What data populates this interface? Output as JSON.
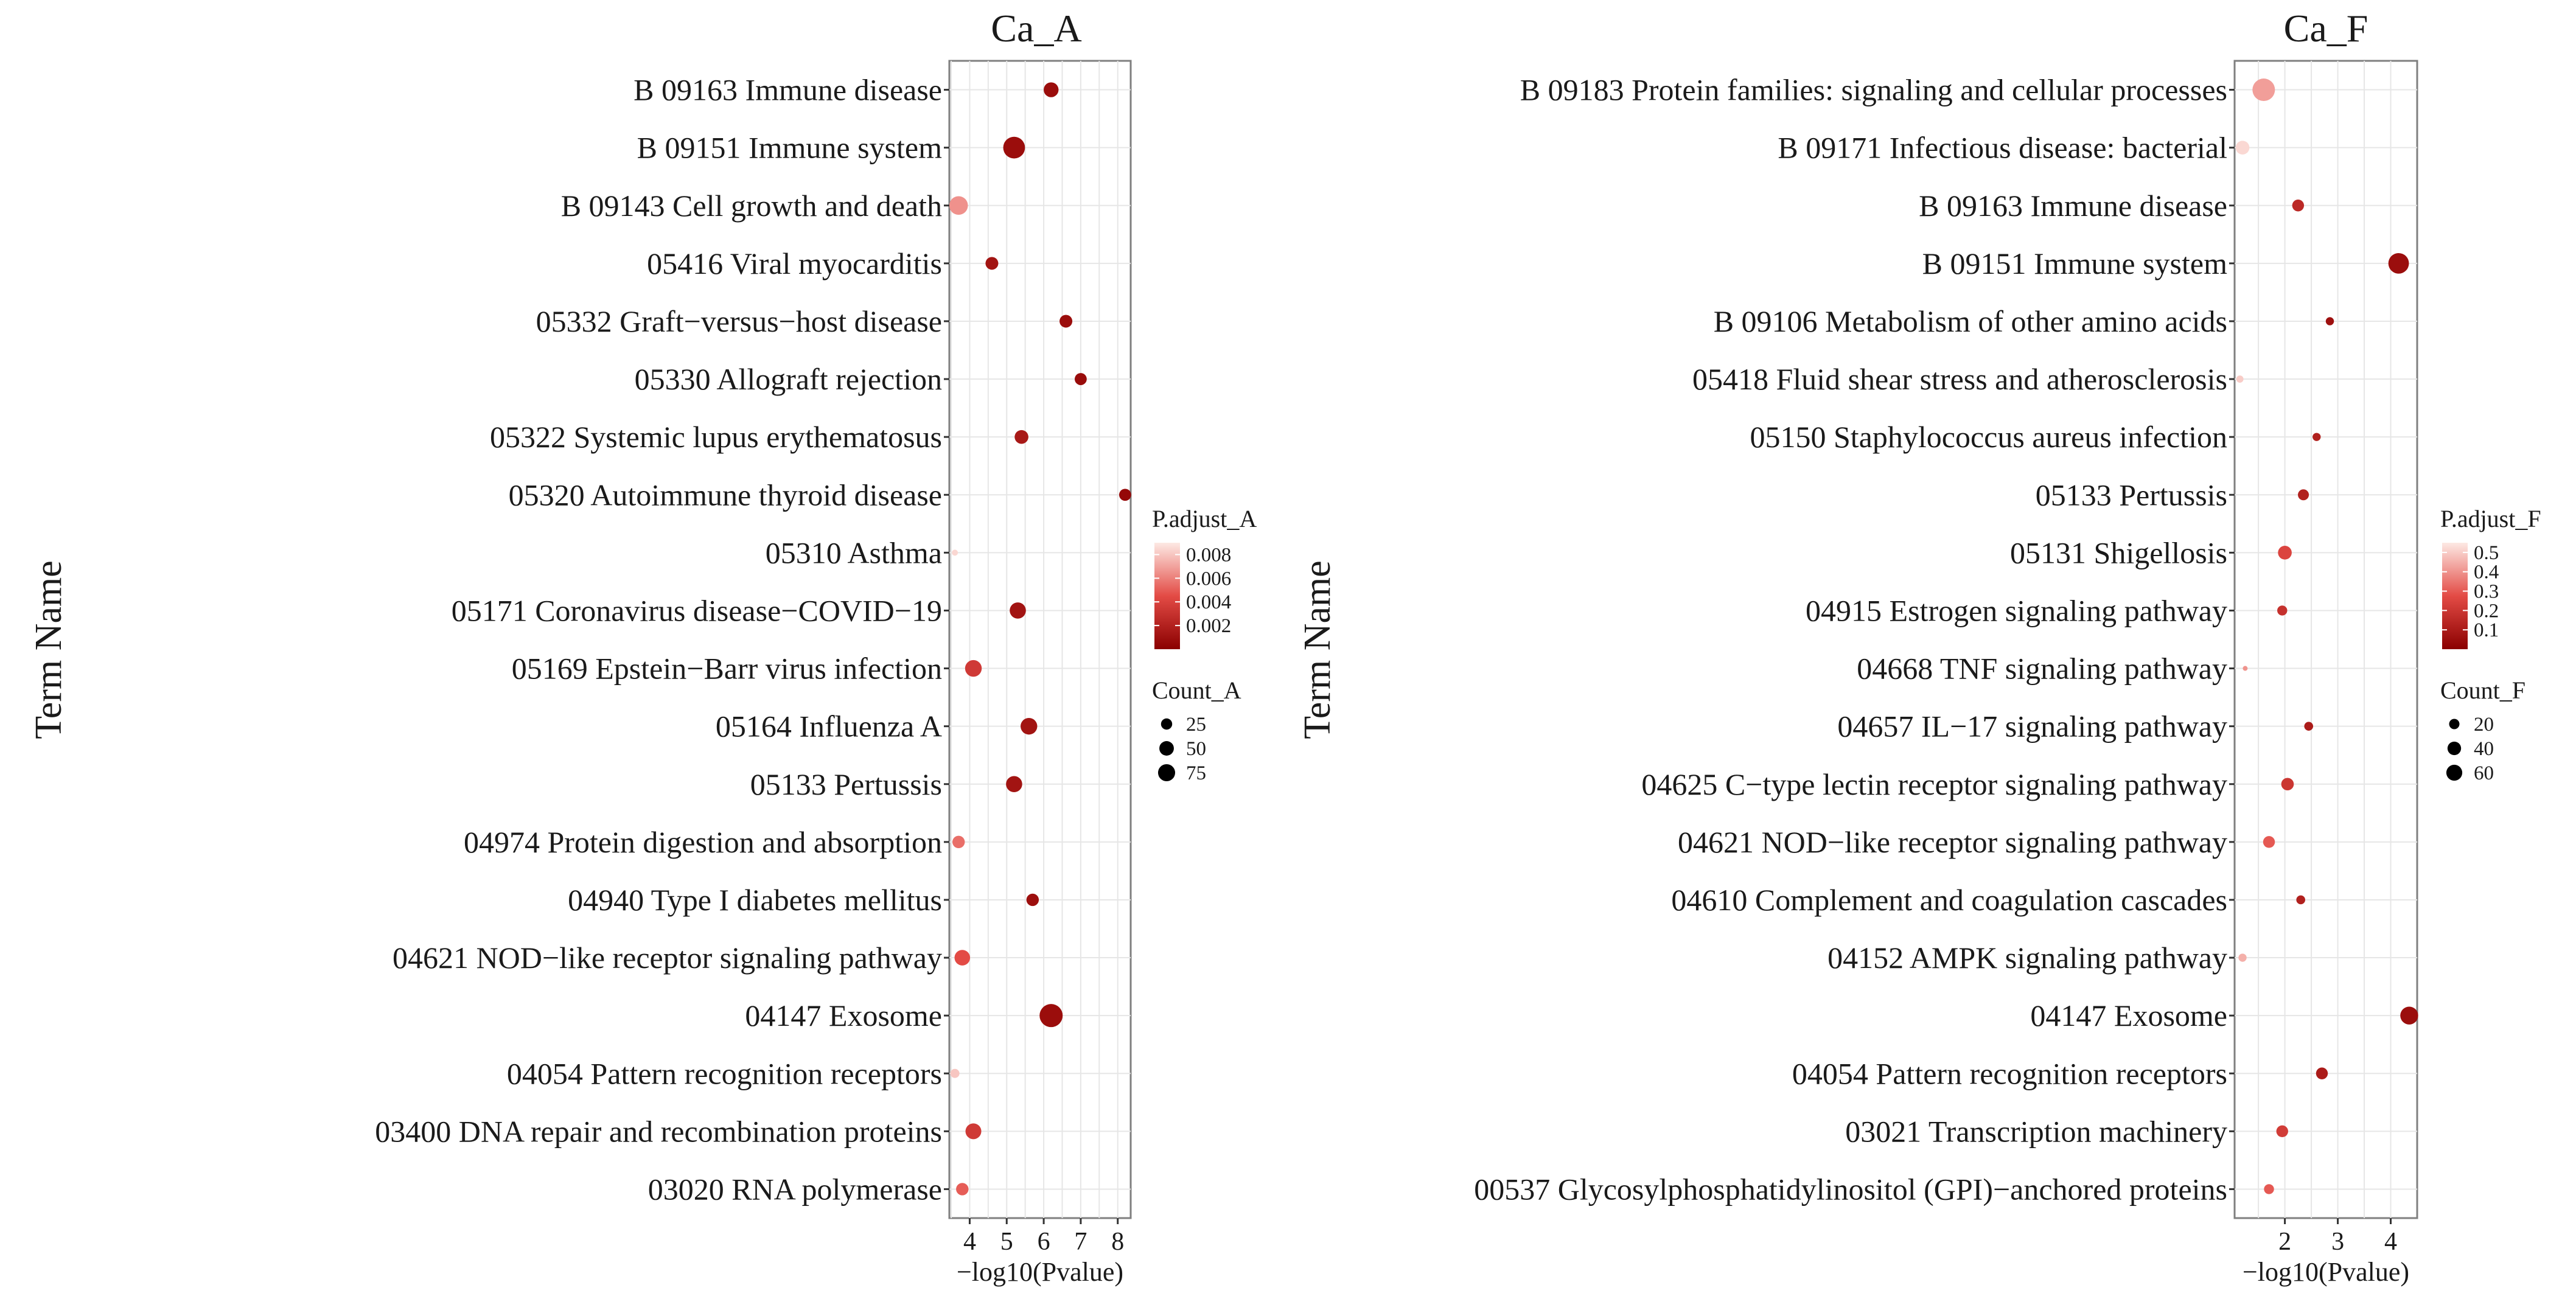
{
  "chart_data": [
    {
      "type": "scatter",
      "title": "Ca_A",
      "xlabel": "−log10(Pvalue)",
      "ylabel": "Term Name",
      "xlim": [
        3.45,
        8.35
      ],
      "xticks": [
        4,
        5,
        6,
        7,
        8
      ],
      "color_legend": {
        "title": "P.adjust_A",
        "min": 0.0,
        "max": 0.009,
        "ticks": [
          "0.008",
          "0.006",
          "0.004",
          "0.002"
        ],
        "tick_values": [
          0.008,
          0.006,
          0.004,
          0.002
        ]
      },
      "size_legend": {
        "title": "Count_A",
        "labels": [
          "25",
          "50",
          "75"
        ],
        "values": [
          25,
          50,
          75
        ],
        "min_count": 5,
        "max_count": 90
      },
      "terms": [
        "B  09163 Immune disease",
        "B  09151 Immune system",
        "B  09143 Cell growth and death",
        "05416 Viral myocarditis",
        "05332 Graft−versus−host disease",
        "05330 Allograft rejection",
        "05322 Systemic lupus erythematosus",
        "05320 Autoimmune thyroid disease",
        "05310 Asthma",
        "05171 Coronavirus disease−COVID−19",
        "05169 Epstein−Barr virus infection",
        "05164 Influenza A",
        "05133 Pertussis",
        "04974 Protein digestion and absorption",
        "04940 Type I diabetes mellitus",
        "04621 NOD−like receptor signaling pathway",
        "04147 Exosome",
        "04054 Pattern recognition receptors",
        "03400 DNA repair and recombination proteins",
        "03020 RNA polymerase"
      ],
      "x": [
        6.2,
        5.2,
        3.7,
        4.6,
        6.6,
        7.0,
        5.4,
        8.2,
        3.6,
        5.3,
        4.1,
        5.6,
        5.2,
        3.7,
        5.7,
        3.8,
        6.2,
        3.6,
        4.1,
        3.8
      ],
      "count": [
        22,
        60,
        40,
        15,
        15,
        13,
        18,
        13,
        5,
        28,
        30,
        30,
        28,
        14,
        14,
        25,
        70,
        7,
        26,
        14
      ],
      "p_adjust": [
        0.0008,
        0.0008,
        0.0065,
        0.0012,
        0.0008,
        0.0007,
        0.0015,
        0.0005,
        0.0085,
        0.0012,
        0.0035,
        0.0012,
        0.0012,
        0.0055,
        0.0009,
        0.0045,
        0.0008,
        0.008,
        0.0035,
        0.005
      ]
    },
    {
      "type": "scatter",
      "title": "Ca_F",
      "xlabel": "−log10(Pvalue)",
      "ylabel": "Term Name",
      "xlim": [
        1.05,
        4.5
      ],
      "xticks": [
        2,
        3,
        4
      ],
      "color_legend": {
        "title": "P.adjust_F",
        "min": 0.0,
        "max": 0.55,
        "ticks": [
          "0.5",
          "0.4",
          "0.3",
          "0.2",
          "0.1"
        ],
        "tick_values": [
          0.5,
          0.4,
          0.3,
          0.2,
          0.1
        ]
      },
      "size_legend": {
        "title": "Count_F",
        "labels": [
          "20",
          "40",
          "60"
        ],
        "values": [
          20,
          40,
          60
        ],
        "min_count": 3,
        "max_count": 75
      },
      "terms": [
        "B  09183 Protein families: signaling and cellular processes",
        "B  09171 Infectious disease: bacterial",
        "B  09163 Immune disease",
        "B  09151 Immune system",
        "B  09106 Metabolism of other amino acids",
        "05418 Fluid shear stress and atherosclerosis",
        "05150 Staphylococcus aureus infection",
        "05133 Pertussis",
        "05131 Shigellosis",
        "04915 Estrogen signaling pathway",
        "04668 TNF signaling pathway",
        "04657 IL−17 signaling pathway",
        "04625 C−type lectin receptor signaling pathway",
        "04621 NOD−like receptor signaling pathway",
        "04610 Complement and coagulation cascades",
        "04152 AMPK signaling pathway",
        "04147 Exosome",
        "04054 Pattern recognition receptors",
        "03021 Transcription machinery",
        "00537 Glycosylphosphatidylinositol (GPI)−anchored proteins"
      ],
      "x": [
        1.6,
        1.2,
        2.25,
        4.15,
        2.85,
        1.15,
        2.6,
        2.35,
        2.0,
        1.95,
        1.25,
        2.45,
        2.05,
        1.7,
        2.3,
        1.2,
        4.35,
        2.7,
        1.95,
        1.7
      ],
      "count": [
        62,
        18,
        12,
        50,
        5,
        4,
        5,
        10,
        18,
        8,
        3,
        6,
        14,
        12,
        6,
        5,
        35,
        12,
        12,
        8
      ],
      "p_adjust": [
        0.42,
        0.52,
        0.15,
        0.05,
        0.06,
        0.5,
        0.12,
        0.12,
        0.25,
        0.18,
        0.4,
        0.1,
        0.2,
        0.3,
        0.12,
        0.45,
        0.05,
        0.1,
        0.22,
        0.3
      ]
    }
  ]
}
